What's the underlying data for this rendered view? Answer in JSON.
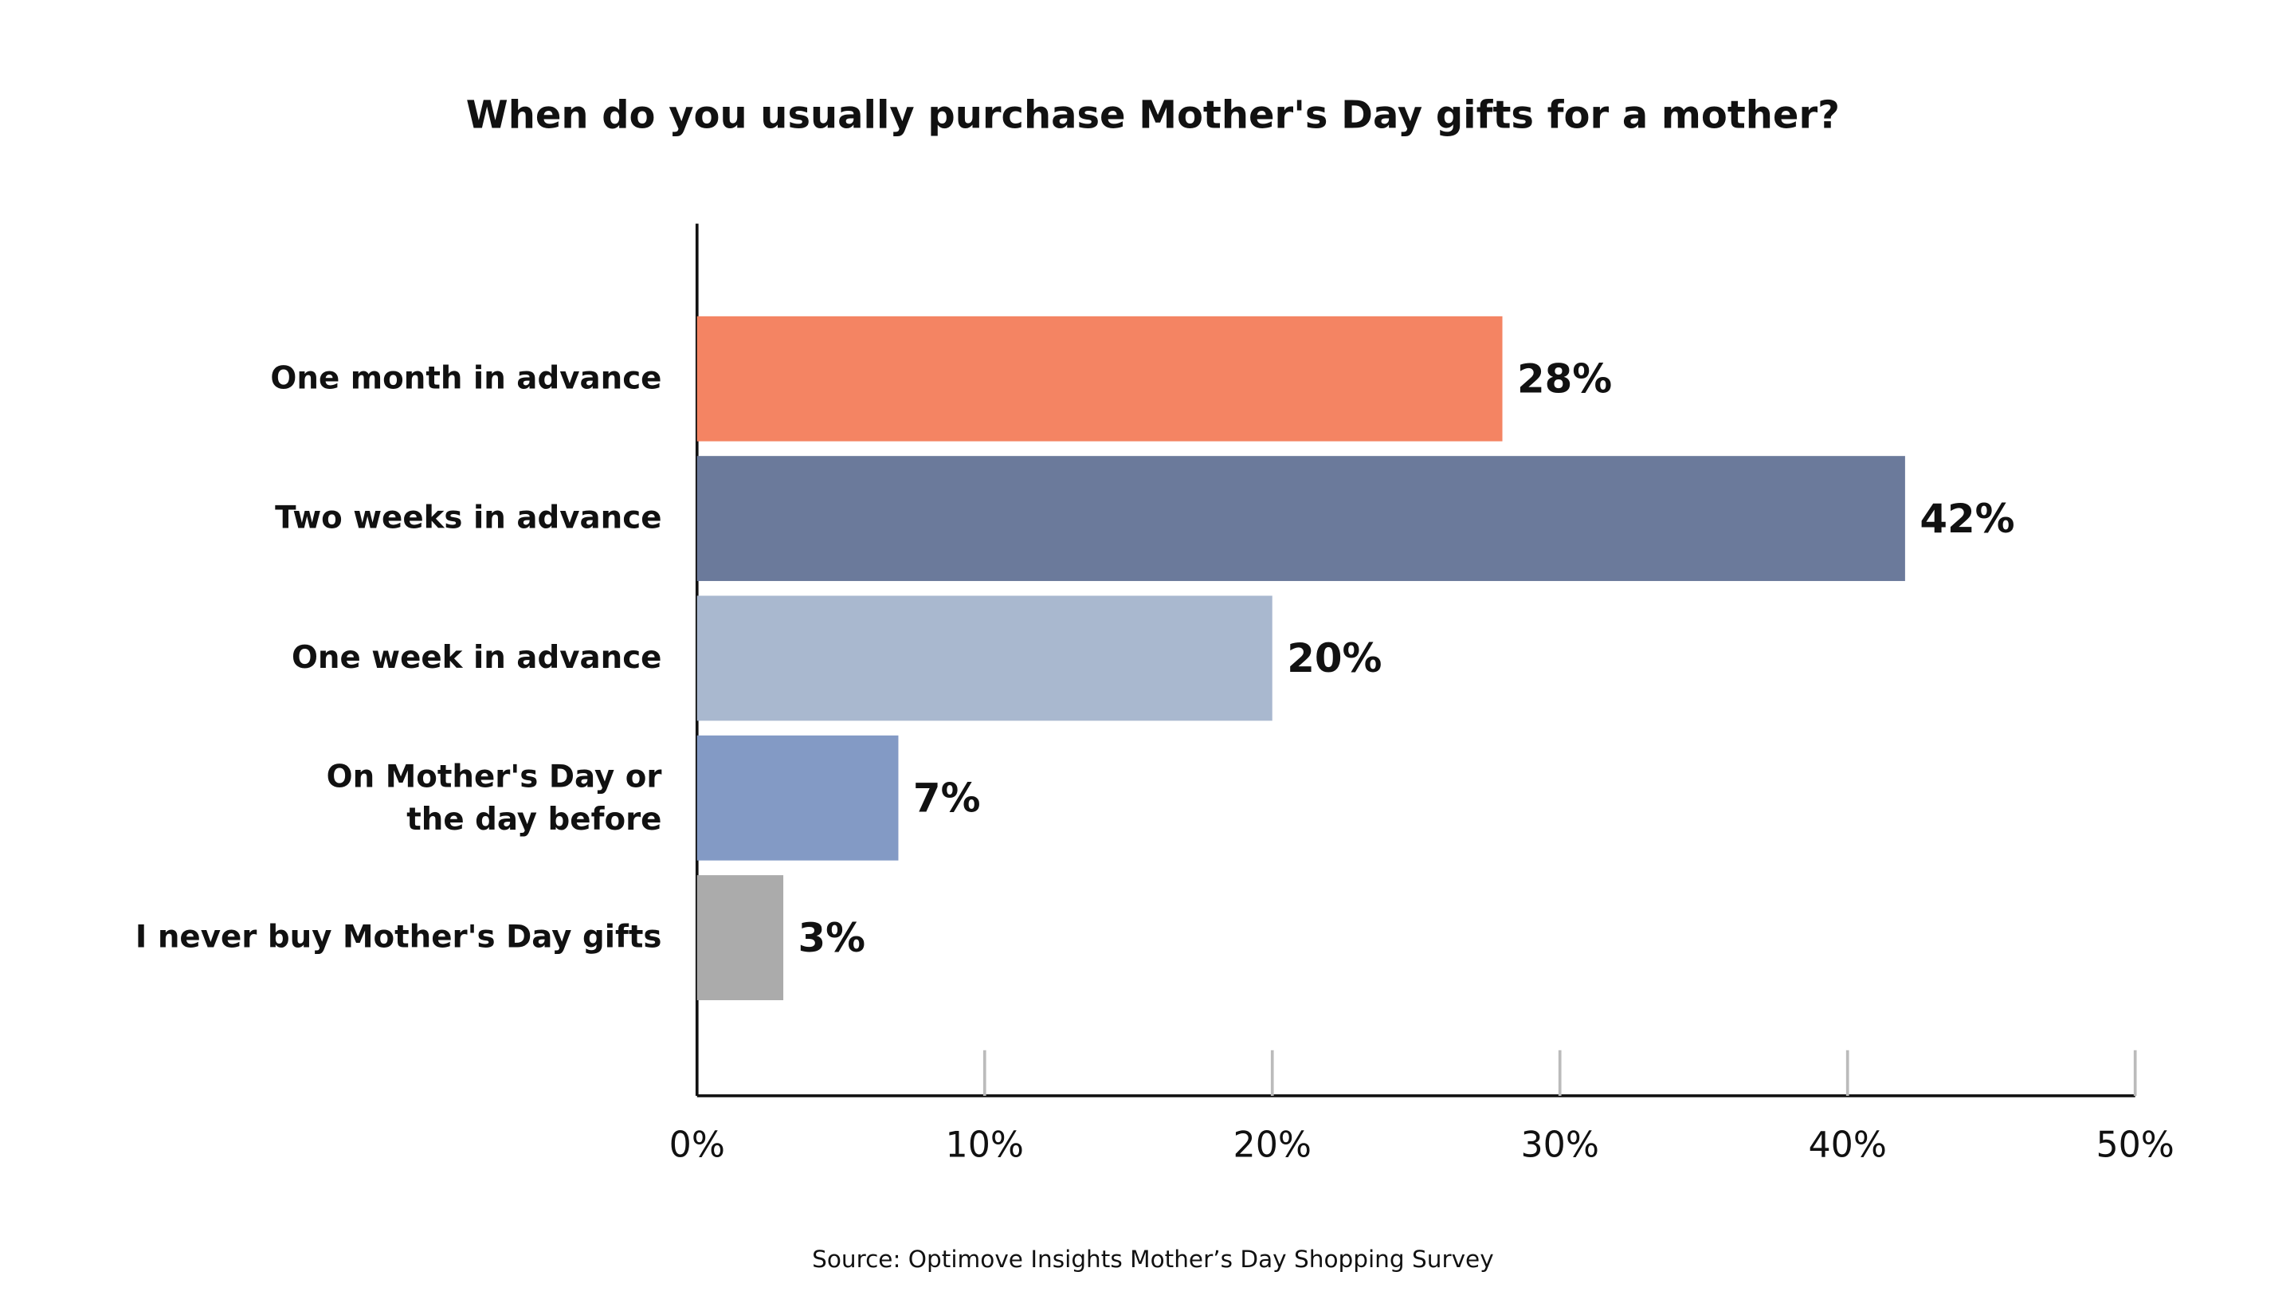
{
  "chart_data": {
    "type": "bar",
    "orientation": "horizontal",
    "title": "When do you usually purchase Mother's Day gifts for a mother?",
    "source": "Source: Optimove Insights Mother’s Day Shopping Survey",
    "categories": [
      "One month in advance",
      "Two weeks in advance",
      "One week in advance",
      "On Mother's Day or\nthe day before",
      "I never buy Mother's Day gifts"
    ],
    "values": [
      28,
      42,
      20,
      7,
      3
    ],
    "value_labels": [
      "28%",
      "42%",
      "20%",
      "7%",
      "3%"
    ],
    "colors": [
      "#f48463",
      "#6b7a9b",
      "#a9b8cf",
      "#839ac5",
      "#ababab"
    ],
    "xlim": [
      0,
      50
    ],
    "xticks": [
      {
        "value": 0,
        "label": "0%"
      },
      {
        "value": 10,
        "label": "10%"
      },
      {
        "value": 20,
        "label": "20%"
      },
      {
        "value": 30,
        "label": "30%"
      },
      {
        "value": 40,
        "label": "40%"
      },
      {
        "value": 50,
        "label": "50%"
      }
    ]
  }
}
